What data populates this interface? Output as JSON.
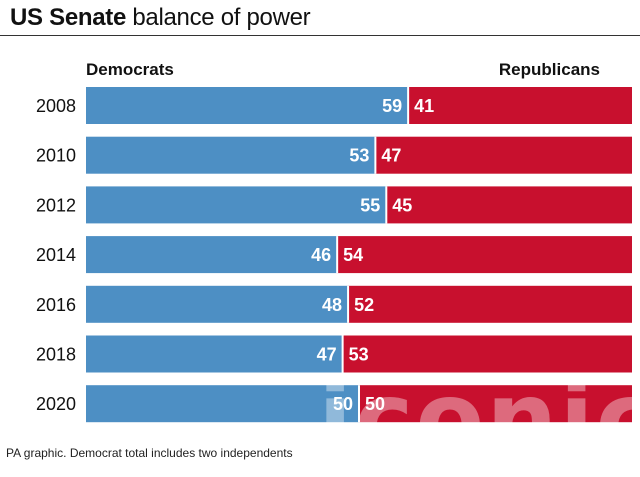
{
  "title_bold": "US Senate",
  "title_rest": " balance of power",
  "legend": {
    "left": "Democrats",
    "right": "Republicans"
  },
  "footnote": "PA graphic. Democrat total includes two independents",
  "watermark": "iconic",
  "colors": {
    "democrat": "#4d8fc4",
    "republican": "#c8102e"
  },
  "chart_data": {
    "type": "bar",
    "stacked": true,
    "orientation": "horizontal",
    "categories": [
      "2008",
      "2010",
      "2012",
      "2014",
      "2016",
      "2018",
      "2020"
    ],
    "series": [
      {
        "name": "Democrats",
        "values": [
          59,
          53,
          55,
          46,
          48,
          47,
          50
        ]
      },
      {
        "name": "Republicans",
        "values": [
          41,
          47,
          45,
          54,
          52,
          53,
          50
        ]
      }
    ],
    "xlim": [
      0,
      100
    ],
    "grid": false,
    "legend": "top"
  }
}
